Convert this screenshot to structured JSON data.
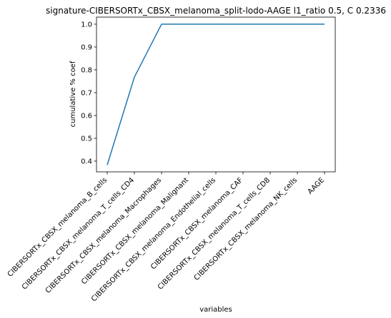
{
  "chart_data": {
    "type": "line",
    "title": "signature-CIBERSORTx_CBSX_melanoma_split-lodo-AAGE l1_ratio 0.5, C 0.2336",
    "xlabel": "variables",
    "ylabel": "cumulative % coef",
    "categories": [
      "CIBERSORTx_CBSX_melanoma_B_cells",
      "CIBERSORTx_CBSX_melanoma_T_cells_CD4",
      "CIBERSORTx_CBSX_melanoma_Macrophages",
      "CIBERSORTx_CBSX_melanoma_Malignant",
      "CIBERSORTx_CBSX_melanoma_Endothelial_cells",
      "CIBERSORTx_CBSX_melanoma_CAF",
      "CIBERSORTx_CBSX_melanoma_T_cells_CD8",
      "CIBERSORTx_CBSX_melanoma_NK_cells",
      "AAGE"
    ],
    "series": [
      {
        "values": [
          0.383,
          0.768,
          1.0,
          1.0,
          1.0,
          1.0,
          1.0,
          1.0,
          1.0
        ]
      }
    ],
    "ylim": [
      0.353,
      1.031
    ],
    "yticks": [
      0.4,
      0.5,
      0.6,
      0.7,
      0.8,
      0.9,
      1.0
    ],
    "ytick_labels": [
      "0.4",
      "0.5",
      "0.6",
      "0.7",
      "0.8",
      "0.9",
      "1.0"
    ],
    "grid": false,
    "line_color": "#1f77b4"
  }
}
